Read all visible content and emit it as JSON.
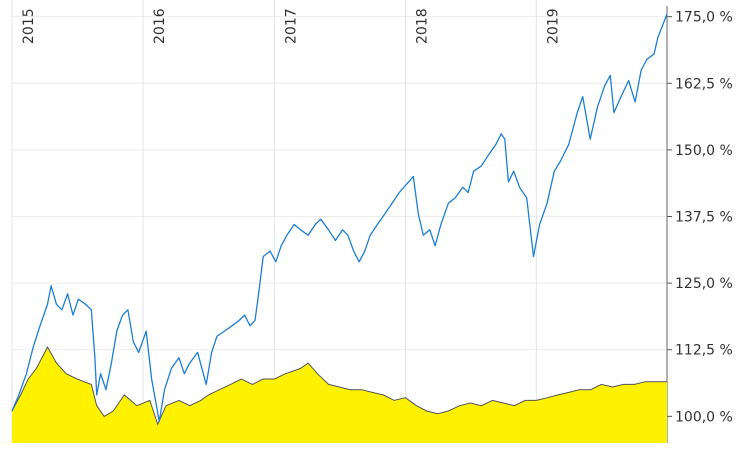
{
  "chart_data": {
    "type": "area",
    "title": "",
    "xlabel": "",
    "ylabel": "",
    "x_range": [
      "2015-01-01",
      "2019-12-31"
    ],
    "ylim": [
      95,
      177
    ],
    "x_tick_labels": [
      "2015",
      "2016",
      "2017",
      "2018",
      "2019"
    ],
    "x_tick_dates": [
      "2015-01-01",
      "2016-01-01",
      "2017-01-01",
      "2018-01-01",
      "2019-01-01"
    ],
    "y_ticks": [
      100,
      112.5,
      125,
      137.5,
      150,
      162.5,
      175
    ],
    "y_tick_labels": [
      "100,0 %",
      "112,5 %",
      "125,0 %",
      "137,5 %",
      "150,0 %",
      "162,5 %",
      "175,0 %"
    ],
    "y_axis_position": "right",
    "grid": true,
    "legend": "none",
    "series": [
      {
        "type": "line",
        "color": "#1c7fd6",
        "points": [
          [
            "2015-01-01",
            101
          ],
          [
            "2015-01-20",
            104
          ],
          [
            "2015-02-10",
            108
          ],
          [
            "2015-03-01",
            113
          ],
          [
            "2015-03-20",
            117
          ],
          [
            "2015-04-10",
            121
          ],
          [
            "2015-04-20",
            124.5
          ],
          [
            "2015-05-05",
            121
          ],
          [
            "2015-05-20",
            120
          ],
          [
            "2015-06-05",
            123
          ],
          [
            "2015-06-20",
            119
          ],
          [
            "2015-07-05",
            122
          ],
          [
            "2015-07-25",
            121
          ],
          [
            "2015-08-10",
            120
          ],
          [
            "2015-08-20",
            111
          ],
          [
            "2015-08-25",
            104
          ],
          [
            "2015-09-05",
            108
          ],
          [
            "2015-09-20",
            105
          ],
          [
            "2015-10-05",
            110
          ],
          [
            "2015-10-20",
            116
          ],
          [
            "2015-11-05",
            119
          ],
          [
            "2015-11-20",
            120
          ],
          [
            "2015-12-05",
            114
          ],
          [
            "2015-12-20",
            112
          ],
          [
            "2016-01-10",
            116
          ],
          [
            "2016-01-25",
            107
          ],
          [
            "2016-02-10",
            101
          ],
          [
            "2016-02-15",
            99
          ],
          [
            "2016-03-01",
            105
          ],
          [
            "2016-03-20",
            109
          ],
          [
            "2016-04-10",
            111
          ],
          [
            "2016-04-25",
            108
          ],
          [
            "2016-05-10",
            110
          ],
          [
            "2016-06-01",
            112
          ],
          [
            "2016-06-25",
            106
          ],
          [
            "2016-07-10",
            112
          ],
          [
            "2016-07-25",
            115
          ],
          [
            "2016-08-15",
            116
          ],
          [
            "2016-09-05",
            117
          ],
          [
            "2016-09-25",
            118
          ],
          [
            "2016-10-10",
            119
          ],
          [
            "2016-10-25",
            117
          ],
          [
            "2016-11-08",
            118
          ],
          [
            "2016-11-20",
            124
          ],
          [
            "2016-12-01",
            130
          ],
          [
            "2016-12-20",
            131
          ],
          [
            "2017-01-05",
            129
          ],
          [
            "2017-01-20",
            132
          ],
          [
            "2017-02-05",
            134
          ],
          [
            "2017-02-25",
            136
          ],
          [
            "2017-03-15",
            135
          ],
          [
            "2017-04-05",
            134
          ],
          [
            "2017-04-25",
            136
          ],
          [
            "2017-05-10",
            137
          ],
          [
            "2017-06-01",
            135
          ],
          [
            "2017-06-20",
            133
          ],
          [
            "2017-07-10",
            135
          ],
          [
            "2017-07-25",
            134
          ],
          [
            "2017-08-10",
            131
          ],
          [
            "2017-08-25",
            129
          ],
          [
            "2017-09-10",
            131
          ],
          [
            "2017-09-25",
            134
          ],
          [
            "2017-10-15",
            136
          ],
          [
            "2017-11-05",
            138
          ],
          [
            "2017-11-25",
            140
          ],
          [
            "2017-12-15",
            142
          ],
          [
            "2018-01-10",
            144
          ],
          [
            "2018-01-23",
            145
          ],
          [
            "2018-02-06",
            138
          ],
          [
            "2018-02-20",
            134
          ],
          [
            "2018-03-10",
            135
          ],
          [
            "2018-03-25",
            132
          ],
          [
            "2018-04-10",
            136
          ],
          [
            "2018-05-01",
            140
          ],
          [
            "2018-05-20",
            141
          ],
          [
            "2018-06-10",
            143
          ],
          [
            "2018-06-25",
            142
          ],
          [
            "2018-07-10",
            146
          ],
          [
            "2018-08-01",
            147
          ],
          [
            "2018-08-20",
            149
          ],
          [
            "2018-09-10",
            151
          ],
          [
            "2018-09-25",
            153
          ],
          [
            "2018-10-05",
            152
          ],
          [
            "2018-10-15",
            144
          ],
          [
            "2018-10-30",
            146
          ],
          [
            "2018-11-15",
            143
          ],
          [
            "2018-12-05",
            141
          ],
          [
            "2018-12-24",
            130
          ],
          [
            "2019-01-10",
            136
          ],
          [
            "2019-01-31",
            140
          ],
          [
            "2019-02-20",
            146
          ],
          [
            "2019-03-10",
            148
          ],
          [
            "2019-04-01",
            151
          ],
          [
            "2019-04-25",
            157
          ],
          [
            "2019-05-10",
            160
          ],
          [
            "2019-05-31",
            152
          ],
          [
            "2019-06-20",
            158
          ],
          [
            "2019-07-10",
            162
          ],
          [
            "2019-07-26",
            164
          ],
          [
            "2019-08-05",
            157
          ],
          [
            "2019-08-25",
            160
          ],
          [
            "2019-09-15",
            163
          ],
          [
            "2019-10-03",
            159
          ],
          [
            "2019-10-20",
            165
          ],
          [
            "2019-11-05",
            167
          ],
          [
            "2019-11-25",
            168
          ],
          [
            "2019-12-05",
            171
          ],
          [
            "2019-12-31",
            175.5
          ]
        ]
      },
      {
        "type": "area",
        "color": "#fff200",
        "line_color": "#555555",
        "points": [
          [
            "2015-01-01",
            101
          ],
          [
            "2015-01-25",
            104
          ],
          [
            "2015-02-15",
            107
          ],
          [
            "2015-03-10",
            109
          ],
          [
            "2015-04-10",
            113
          ],
          [
            "2015-05-05",
            110
          ],
          [
            "2015-06-01",
            108
          ],
          [
            "2015-07-01",
            107
          ],
          [
            "2015-08-10",
            106
          ],
          [
            "2015-08-25",
            102
          ],
          [
            "2015-09-15",
            100
          ],
          [
            "2015-10-10",
            101
          ],
          [
            "2015-11-10",
            104
          ],
          [
            "2015-12-15",
            102
          ],
          [
            "2016-01-20",
            103
          ],
          [
            "2016-02-11",
            98.5
          ],
          [
            "2016-03-05",
            102
          ],
          [
            "2016-04-10",
            103
          ],
          [
            "2016-05-10",
            102
          ],
          [
            "2016-06-10",
            103
          ],
          [
            "2016-07-01",
            104
          ],
          [
            "2016-08-01",
            105
          ],
          [
            "2016-09-01",
            106
          ],
          [
            "2016-10-01",
            107
          ],
          [
            "2016-11-01",
            106
          ],
          [
            "2016-12-01",
            107
          ],
          [
            "2017-01-01",
            107
          ],
          [
            "2017-02-01",
            108
          ],
          [
            "2017-03-15",
            109
          ],
          [
            "2017-04-05",
            110
          ],
          [
            "2017-05-01",
            108
          ],
          [
            "2017-06-01",
            106
          ],
          [
            "2017-07-01",
            105.5
          ],
          [
            "2017-08-01",
            105
          ],
          [
            "2017-09-01",
            105
          ],
          [
            "2017-10-01",
            104.5
          ],
          [
            "2017-11-01",
            104
          ],
          [
            "2017-12-01",
            103
          ],
          [
            "2018-01-01",
            103.5
          ],
          [
            "2018-02-01",
            102
          ],
          [
            "2018-03-01",
            101
          ],
          [
            "2018-04-01",
            100.5
          ],
          [
            "2018-05-01",
            101
          ],
          [
            "2018-06-01",
            102
          ],
          [
            "2018-07-01",
            102.5
          ],
          [
            "2018-08-01",
            102
          ],
          [
            "2018-09-01",
            103
          ],
          [
            "2018-10-01",
            102.5
          ],
          [
            "2018-11-01",
            102
          ],
          [
            "2018-12-01",
            103
          ],
          [
            "2019-01-01",
            103
          ],
          [
            "2019-02-01",
            103.5
          ],
          [
            "2019-03-01",
            104
          ],
          [
            "2019-04-01",
            104.5
          ],
          [
            "2019-05-01",
            105
          ],
          [
            "2019-06-01",
            105
          ],
          [
            "2019-07-01",
            106
          ],
          [
            "2019-08-01",
            105.5
          ],
          [
            "2019-09-01",
            106
          ],
          [
            "2019-10-01",
            106
          ],
          [
            "2019-11-01",
            106.5
          ],
          [
            "2019-12-31",
            106.5
          ]
        ]
      }
    ]
  }
}
